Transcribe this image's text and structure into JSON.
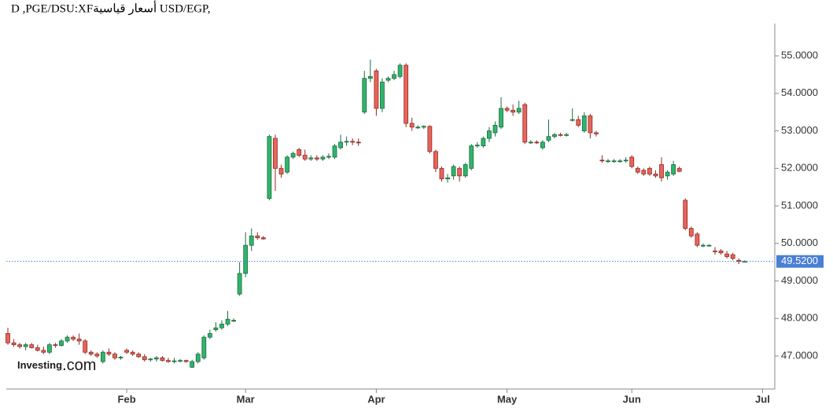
{
  "chart_data": {
    "type": "candlestick",
    "title": "D ,PGE/DSU:XFأسعار قياسية USD/EGP,",
    "watermark": "Investing",
    "watermark_suffix": ".com",
    "up_color": "#2fb56c",
    "down_color": "#e8645a",
    "categories": [
      null,
      null,
      null,
      null,
      null,
      null,
      null,
      null,
      null,
      null,
      null,
      null,
      null,
      null,
      null,
      null,
      null,
      null,
      null,
      null,
      "Feb",
      null,
      null,
      null,
      null,
      null,
      null,
      null,
      null,
      null,
      null,
      null,
      null,
      null,
      null,
      null,
      null,
      null,
      null,
      null,
      "Mar",
      null,
      null,
      null,
      null,
      null,
      null,
      null,
      null,
      null,
      null,
      null,
      null,
      null,
      null,
      null,
      null,
      null,
      null,
      null,
      null,
      null,
      "Apr",
      null,
      null,
      null,
      null,
      null,
      null,
      null,
      null,
      null,
      null,
      null,
      null,
      null,
      null,
      null,
      null,
      null,
      null,
      null,
      null,
      null,
      "May",
      null,
      null,
      null,
      null,
      null,
      null,
      null,
      null,
      null,
      null,
      null,
      null,
      null,
      null,
      null,
      null,
      null,
      null,
      null,
      null,
      "Jun",
      null,
      null,
      null,
      null,
      null,
      null,
      null,
      null,
      null,
      null,
      null,
      null,
      null,
      null,
      null,
      null,
      null,
      null,
      null,
      null,
      null,
      "Jul",
      null
    ],
    "open": [
      47.6,
      47.35,
      47.3,
      47.25,
      47.3,
      47.22,
      47.15,
      47.1,
      47.3,
      47.28,
      47.4,
      47.5,
      47.45,
      47.4,
      47.1,
      47.05,
      46.85,
      47.1,
      47.05,
      46.95,
      47.15,
      47.1,
      47.05,
      46.98,
      46.9,
      46.92,
      46.95,
      46.88,
      46.85,
      46.87,
      46.88,
      46.7,
      46.85,
      46.95,
      47.5,
      47.7,
      47.75,
      47.85,
      47.95,
      48.65,
      49.2,
      49.95,
      50.2,
      50.15,
      51.2,
      52.8,
      52.0,
      51.9,
      52.3,
      52.5,
      52.35,
      52.25,
      52.28,
      52.25,
      52.3,
      52.3,
      52.55,
      52.7,
      52.72,
      52.7,
      53.5,
      54.4,
      54.6,
      53.6,
      54.35,
      54.4,
      54.45,
      54.75,
      53.2,
      53.1,
      53.1,
      53.12,
      52.45,
      52.0,
      51.72,
      51.8,
      52.0,
      51.8,
      52.0,
      52.6,
      52.6,
      52.8,
      52.95,
      53.1,
      53.6,
      53.55,
      53.5,
      53.7,
      52.7,
      52.7,
      52.55,
      52.75,
      52.85,
      52.9,
      52.88,
      53.3,
      53.3,
      53.0,
      53.4,
      52.95,
      52.22,
      52.2,
      52.2,
      52.2,
      52.2,
      52.3,
      52.0,
      51.95,
      52.0,
      51.85,
      52.1,
      51.8,
      51.85,
      52.0,
      51.15,
      50.4,
      50.25,
      49.95,
      49.95,
      49.8,
      49.8,
      49.72,
      49.7,
      49.55,
      49.52,
      null,
      null,
      null,
      null
    ],
    "high": [
      47.75,
      47.45,
      47.35,
      47.35,
      47.35,
      47.3,
      47.25,
      47.35,
      47.35,
      47.45,
      47.55,
      47.55,
      47.6,
      47.45,
      47.15,
      47.1,
      47.15,
      47.2,
      47.1,
      47.0,
      47.2,
      47.15,
      47.1,
      47.05,
      46.95,
      47.0,
      47.0,
      46.95,
      46.95,
      46.92,
      46.9,
      46.9,
      47.1,
      47.55,
      47.7,
      47.9,
      47.95,
      48.2,
      48.0,
      49.5,
      50.3,
      50.4,
      50.3,
      50.2,
      52.9,
      52.9,
      52.1,
      52.35,
      52.45,
      52.55,
      52.5,
      52.35,
      52.35,
      52.35,
      52.4,
      52.65,
      52.9,
      52.85,
      52.8,
      52.8,
      54.6,
      54.9,
      54.65,
      54.4,
      54.45,
      54.6,
      54.8,
      54.8,
      53.35,
      53.15,
      53.15,
      53.15,
      52.5,
      52.05,
      51.85,
      52.1,
      52.05,
      52.15,
      52.65,
      52.7,
      52.85,
      53.1,
      53.25,
      53.9,
      53.65,
      53.7,
      53.8,
      53.75,
      52.75,
      52.75,
      52.75,
      53.3,
      52.95,
      52.95,
      52.95,
      53.6,
      53.4,
      53.5,
      53.45,
      53.0,
      52.35,
      52.25,
      52.25,
      52.25,
      52.3,
      52.35,
      52.05,
      52.0,
      52.05,
      51.95,
      52.3,
      51.95,
      52.2,
      52.05,
      51.2,
      50.45,
      50.3,
      50.0,
      49.98,
      49.9,
      49.85,
      49.8,
      49.75,
      49.6,
      49.55,
      null,
      null,
      null,
      null
    ],
    "low": [
      47.3,
      47.25,
      47.2,
      47.15,
      47.2,
      47.12,
      47.05,
      47.05,
      47.22,
      47.25,
      47.35,
      47.4,
      47.3,
      47.05,
      47.0,
      46.95,
      46.8,
      47.0,
      46.9,
      46.9,
      47.05,
      47.0,
      46.95,
      46.85,
      46.85,
      46.85,
      46.85,
      46.82,
      46.8,
      46.83,
      46.82,
      46.68,
      46.8,
      46.9,
      47.45,
      47.65,
      47.7,
      47.8,
      47.9,
      48.6,
      49.1,
      49.8,
      50.1,
      50.1,
      51.15,
      51.4,
      51.75,
      51.85,
      52.25,
      52.3,
      52.2,
      52.2,
      52.2,
      52.2,
      52.25,
      52.25,
      52.5,
      52.6,
      52.62,
      52.6,
      53.45,
      54.3,
      53.4,
      53.5,
      54.3,
      54.35,
      54.4,
      53.1,
      53.0,
      53.05,
      53.05,
      52.4,
      51.9,
      51.65,
      51.62,
      51.7,
      51.65,
      51.75,
      51.95,
      52.55,
      52.55,
      52.7,
      52.85,
      53.05,
      53.5,
      53.4,
      53.45,
      52.65,
      52.65,
      52.65,
      52.5,
      52.7,
      52.8,
      52.85,
      52.85,
      53.25,
      53.1,
      52.95,
      52.8,
      52.85,
      52.15,
      52.15,
      52.15,
      52.15,
      52.15,
      52.0,
      51.85,
      51.8,
      51.8,
      51.75,
      51.65,
      51.7,
      51.8,
      51.9,
      50.35,
      50.15,
      49.9,
      49.9,
      49.92,
      49.7,
      49.7,
      49.6,
      49.55,
      49.45,
      49.5,
      null,
      null,
      null,
      null
    ],
    "close": [
      47.35,
      47.3,
      47.25,
      47.3,
      47.22,
      47.15,
      47.1,
      47.3,
      47.28,
      47.4,
      47.5,
      47.45,
      47.4,
      47.1,
      47.05,
      47.0,
      47.1,
      47.05,
      46.95,
      46.97,
      47.1,
      47.05,
      46.98,
      46.9,
      46.92,
      46.95,
      46.88,
      46.85,
      46.87,
      46.88,
      46.85,
      46.85,
      47.05,
      47.5,
      47.6,
      47.75,
      47.85,
      47.98,
      47.95,
      49.2,
      49.95,
      50.2,
      50.15,
      50.12,
      52.85,
      52.0,
      51.85,
      52.3,
      52.4,
      52.35,
      52.25,
      52.28,
      52.25,
      52.3,
      52.32,
      52.6,
      52.7,
      52.72,
      52.7,
      52.68,
      54.4,
      54.45,
      53.6,
      54.3,
      54.4,
      54.5,
      54.75,
      53.2,
      53.1,
      53.1,
      53.12,
      52.45,
      52.0,
      51.72,
      51.75,
      52.05,
      51.8,
      52.1,
      52.6,
      52.62,
      52.8,
      53.0,
      53.15,
      53.6,
      53.55,
      53.5,
      53.6,
      52.7,
      52.7,
      52.68,
      52.7,
      52.85,
      52.9,
      52.88,
      52.9,
      53.3,
      53.15,
      53.4,
      52.95,
      52.92,
      52.2,
      52.2,
      52.2,
      52.2,
      52.22,
      52.05,
      51.9,
      51.85,
      51.85,
      51.8,
      51.75,
      51.9,
      52.1,
      51.92,
      50.4,
      50.2,
      49.95,
      49.95,
      49.95,
      49.78,
      49.75,
      49.65,
      49.6,
      49.52,
      49.52,
      null,
      null,
      null,
      null
    ],
    "ylim": [
      46.12,
      55.86
    ],
    "yticks": [
      {
        "value": 47,
        "label": "47.0000"
      },
      {
        "value": 48,
        "label": "48.0000"
      },
      {
        "value": 49,
        "label": "49.0000"
      },
      {
        "value": 50,
        "label": "50.0000"
      },
      {
        "value": 51,
        "label": "51.0000"
      },
      {
        "value": 52,
        "label": "52.0000"
      },
      {
        "value": 53,
        "label": "53.0000"
      },
      {
        "value": 54,
        "label": "54.0000"
      },
      {
        "value": 55,
        "label": "55.0000"
      }
    ],
    "last_price": {
      "value": 49.52,
      "label": "49.5200"
    },
    "last_price_color": "#4a7fd6",
    "grid": false
  }
}
